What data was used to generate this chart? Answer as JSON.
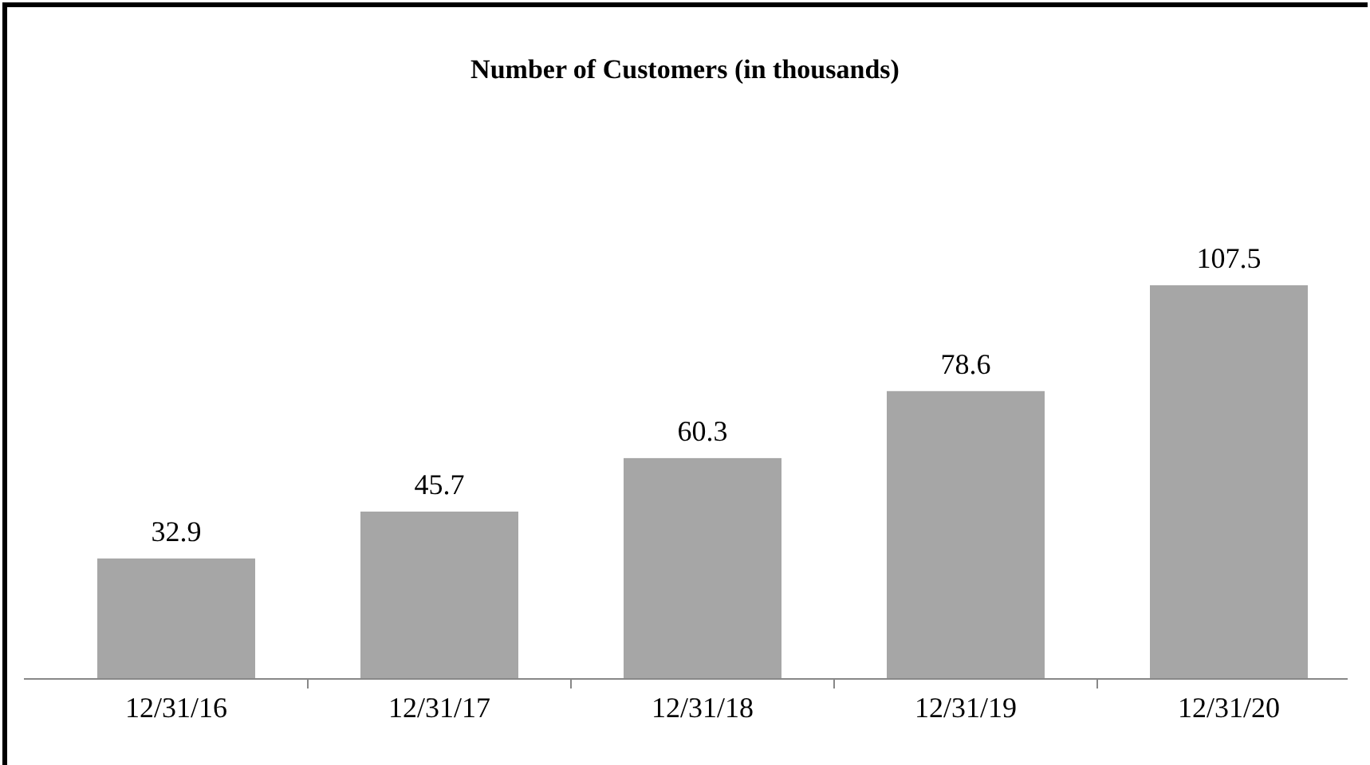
{
  "chart_data": {
    "type": "bar",
    "title": "Number of Customers (in thousands)",
    "categories": [
      "12/31/16",
      "12/31/17",
      "12/31/18",
      "12/31/19",
      "12/31/20"
    ],
    "values": [
      32.9,
      45.7,
      60.3,
      78.6,
      107.5
    ],
    "color": "#a6a6a6",
    "data_labels": true
  }
}
